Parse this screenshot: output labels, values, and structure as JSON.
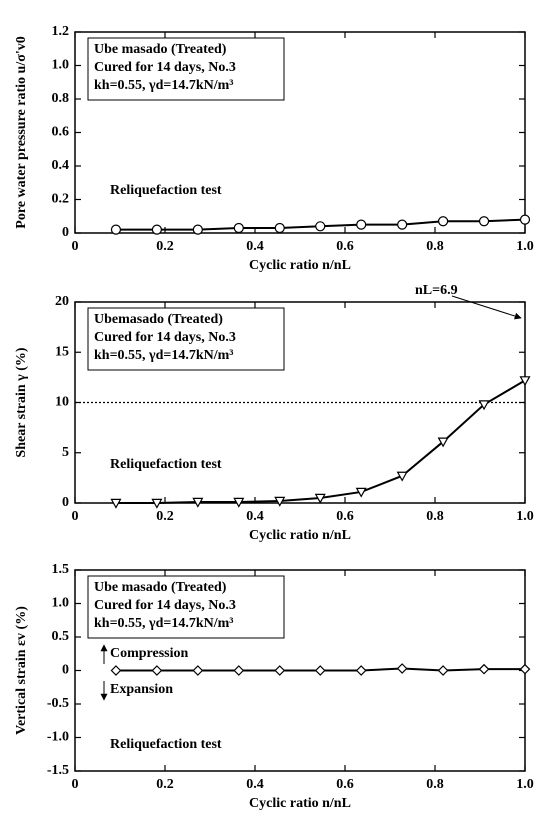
{
  "chart_data": [
    {
      "type": "line",
      "color": "#000000",
      "marker": "circle",
      "ylabel": "Pore water pressure ratio u/σ'v0",
      "xlabel": "Cyclic ratio n/nL",
      "note_box": [
        "Ube masado (Treated)",
        "Cured for 14 days, No.3",
        "kh=0.55, γd=14.7kN/m³"
      ],
      "annotations": [
        "Reliquefaction test"
      ],
      "x": [
        0.091,
        0.182,
        0.273,
        0.364,
        0.455,
        0.545,
        0.636,
        0.727,
        0.818,
        0.909,
        1.0
      ],
      "values": [
        0.02,
        0.02,
        0.02,
        0.03,
        0.03,
        0.04,
        0.05,
        0.05,
        0.07,
        0.07,
        0.08
      ],
      "xlim": [
        0,
        1
      ],
      "xticks": [
        0,
        0.2,
        0.4,
        0.6,
        0.8,
        {
          "value": 1,
          "label": "1.0"
        }
      ],
      "ylim": [
        0,
        1.2
      ],
      "yticks": [
        0,
        0.2,
        0.4,
        0.6,
        0.8,
        {
          "value": 1,
          "label": "1.0"
        },
        1.2
      ]
    },
    {
      "type": "line",
      "color": "#000000",
      "marker": "triangle-down",
      "ylabel": "Shear strain γ (%)",
      "xlabel": "Cyclic ratio n/nL",
      "note_box": [
        "Ubemasado (Treated)",
        "Cured for 14 days, No.3",
        "kh=0.55, γd=14.7kN/m³"
      ],
      "annotations": [
        "Reliquefaction test",
        "nL=6.9"
      ],
      "reference_line": 10,
      "x": [
        0.091,
        0.182,
        0.273,
        0.364,
        0.455,
        0.545,
        0.636,
        0.727,
        0.818,
        0.909,
        1.0
      ],
      "values": [
        0,
        0,
        0.1,
        0.1,
        0.2,
        0.5,
        1.1,
        2.7,
        6.1,
        9.8,
        12.2
      ],
      "xlim": [
        0,
        1
      ],
      "xticks": [
        0,
        0.2,
        0.4,
        0.6,
        0.8,
        {
          "value": 1,
          "label": "1.0"
        }
      ],
      "ylim": [
        0,
        20
      ],
      "yticks": [
        0,
        5,
        10,
        15,
        20
      ]
    },
    {
      "type": "line",
      "color": "#000000",
      "marker": "diamond",
      "ylabel": "Vertical strain εv (%)",
      "xlabel": "Cyclic ratio n/nL",
      "note_box": [
        "Ube masado (Treated)",
        "Cured for 14 days, No.3",
        "kh=0.55, γd=14.7kN/m³"
      ],
      "annotations": [
        "Reliquefaction test",
        "Compression",
        "Expansion"
      ],
      "x": [
        0.091,
        0.182,
        0.273,
        0.364,
        0.455,
        0.545,
        0.636,
        0.727,
        0.818,
        0.909,
        1.0
      ],
      "values": [
        0,
        0,
        0,
        0,
        0,
        0,
        0,
        0.03,
        0,
        0.02,
        0.02
      ],
      "xlim": [
        0,
        1
      ],
      "xticks": [
        0,
        0.2,
        0.4,
        0.6,
        0.8,
        {
          "value": 1,
          "label": "1.0"
        }
      ],
      "ylim": [
        -1.5,
        1.5
      ],
      "yticks": [
        {
          "value": -1.5,
          "label": "-1.5"
        },
        {
          "value": -1,
          "label": "-1.0"
        },
        {
          "value": -0.5,
          "label": "-0.5"
        },
        0,
        0.5,
        {
          "value": 1,
          "label": "1.0"
        },
        1.5
      ]
    }
  ]
}
